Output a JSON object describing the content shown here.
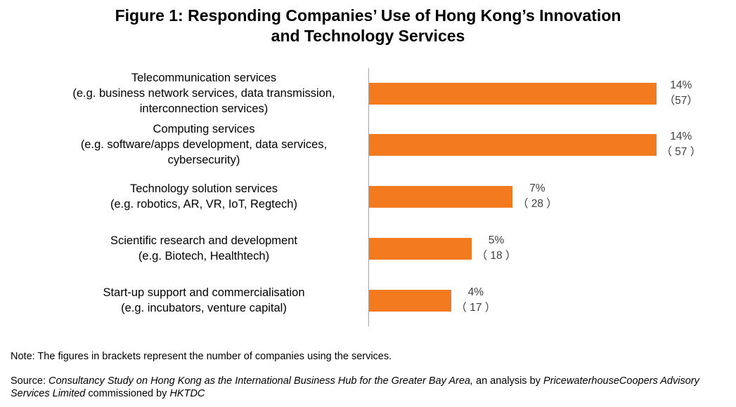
{
  "title": {
    "line1": "Figure 1: Responding Companies’ Use of Hong Kong’s Innovation",
    "line2": "and Technology Services"
  },
  "chart_data": {
    "type": "bar",
    "orientation": "horizontal",
    "categories": [
      [
        "Telecommunication services",
        "(e.g. business network services, data transmission,",
        "interconnection services)"
      ],
      [
        "Computing services",
        "(e.g. software/apps development, data services,",
        "cybersecurity)"
      ],
      [
        "Technology solution services",
        "(e.g. robotics, AR, VR, IoT, Regtech)"
      ],
      [
        "Scientific research and development",
        "(e.g. Biotech, Healthtech)"
      ],
      [
        "Start-up support and commercialisation",
        "(e.g. incubators, venture capital)"
      ]
    ],
    "values": [
      14,
      14,
      7,
      5,
      4
    ],
    "value_labels": [
      "14%",
      "14%",
      "7%",
      "5%",
      "4%"
    ],
    "counts": [
      57,
      57,
      28,
      18,
      17
    ],
    "count_labels": [
      "（57）",
      "（ 57 ）",
      "（ 28 ）",
      "（ 18 ）",
      "（ 17 ）"
    ],
    "bar_color": "#f47a1f",
    "axis_color": "#a6a6a6",
    "grid": false,
    "legend": "none"
  },
  "note": "Note: The figures in brackets represent the number of companies using the services.",
  "source": {
    "prefix": "Source: ",
    "study": "Consultancy Study on Hong Kong as the International Business Hub for the Greater Bay Area,",
    "mid": " an analysis by ",
    "firm": "PricewaterhouseCoopers Advisory Services Limited",
    "mid2": " commissioned by ",
    "client": "HKTDC"
  }
}
